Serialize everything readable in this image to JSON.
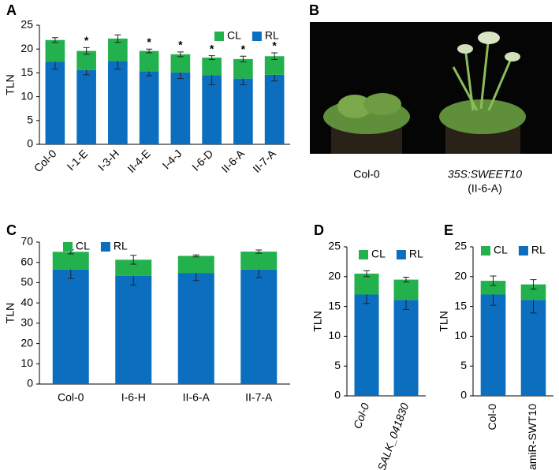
{
  "chart_data": [
    {
      "type": "stacked_bar",
      "panel": "A",
      "ylabel": "TLN",
      "categories": [
        "Col-0",
        "I-1-E",
        "I-3-H",
        "II-4-E",
        "I-4-J",
        "I-6-D",
        "II-6-A",
        "II-7-A"
      ],
      "series": [
        {
          "name": "RL",
          "color": "#0b6ebf",
          "values": [
            17.3,
            15.6,
            17.5,
            15.3,
            15.1,
            14.5,
            13.8,
            14.6
          ],
          "errors": [
            1.5,
            1.0,
            1.7,
            0.9,
            1.3,
            2.0,
            1.3,
            1.3
          ]
        },
        {
          "name": "CL",
          "color": "#22b14c",
          "values": [
            4.6,
            4.0,
            4.7,
            4.3,
            3.8,
            3.7,
            4.1,
            3.9
          ],
          "errors": [
            0.5,
            0.7,
            0.8,
            0.4,
            0.5,
            0.4,
            0.6,
            0.7
          ]
        }
      ],
      "markers": [
        null,
        "*",
        null,
        "*",
        "*",
        "*",
        "*",
        "*"
      ],
      "ylim": [
        0,
        25
      ],
      "yticks": [
        0,
        5,
        10,
        15,
        20,
        25
      ]
    },
    {
      "type": "stacked_bar",
      "panel": "C",
      "ylabel": "TLN",
      "categories": [
        "Col-0",
        "I-6-H",
        "II-6-A",
        "II-7-A"
      ],
      "series": [
        {
          "name": "RL",
          "color": "#0b6ebf",
          "values": [
            56.5,
            53.3,
            54.8,
            56.5
          ],
          "errors": [
            4.5,
            4.5,
            3.8,
            4.0
          ]
        },
        {
          "name": "CL",
          "color": "#22b14c",
          "values": [
            8.7,
            8.0,
            8.4,
            8.8
          ],
          "errors": [
            1.0,
            2.2,
            0.5,
            0.8
          ]
        }
      ],
      "ylim": [
        0,
        70
      ],
      "yticks": [
        0,
        10,
        20,
        30,
        40,
        50,
        60,
        70
      ]
    },
    {
      "type": "stacked_bar",
      "panel": "D",
      "ylabel": "TLN",
      "categories": [
        "Col-0",
        "SALK_041830"
      ],
      "series": [
        {
          "name": "RL",
          "color": "#0b6ebf",
          "values": [
            17.0,
            16.1
          ],
          "errors": [
            1.5,
            1.6
          ]
        },
        {
          "name": "CL",
          "color": "#22b14c",
          "values": [
            3.5,
            3.4
          ],
          "errors": [
            0.5,
            0.4
          ]
        }
      ],
      "ylim": [
        0,
        25
      ],
      "yticks": [
        0,
        5,
        10,
        15,
        20,
        25
      ]
    },
    {
      "type": "stacked_bar",
      "panel": "E",
      "ylabel": "TLN",
      "categories": [
        "Col-0",
        "amiR-SWT10"
      ],
      "series": [
        {
          "name": "RL",
          "color": "#0b6ebf",
          "values": [
            17.0,
            16.1
          ],
          "errors": [
            1.8,
            2.2
          ]
        },
        {
          "name": "CL",
          "color": "#22b14c",
          "values": [
            2.3,
            2.6
          ],
          "errors": [
            0.8,
            0.8
          ]
        }
      ],
      "ylim": [
        0,
        25
      ],
      "yticks": [
        0,
        5,
        10,
        15,
        20,
        25
      ]
    }
  ],
  "panel_b": {
    "label": "B",
    "captions": [
      "Col-0",
      "35S:SWEET10",
      "(II-6-A)"
    ]
  }
}
